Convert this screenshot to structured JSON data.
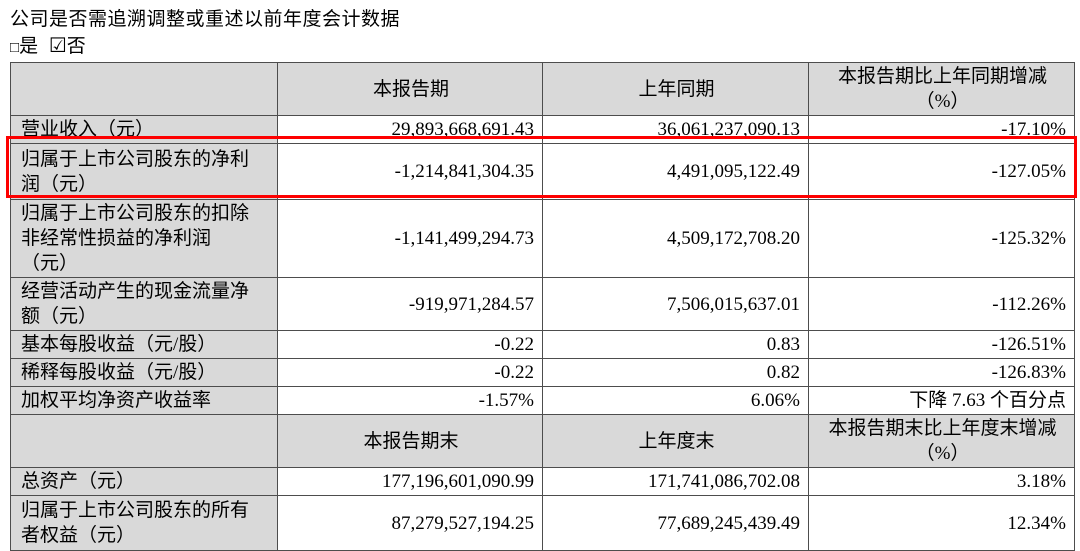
{
  "colors": {
    "header_bg": "#d9d9d9",
    "table_border": "#4d4d4d",
    "highlight_border": "#fe0000",
    "text": "#000000"
  },
  "intro": {
    "question": "公司是否需追溯调整或重述以前年度会计数据",
    "options": [
      {
        "glyph": "□",
        "label": "是",
        "checked": false
      },
      {
        "glyph": "☑",
        "label": "否",
        "checked": true
      }
    ]
  },
  "table": {
    "section1": {
      "headers": {
        "blank": "",
        "period": "本报告期",
        "prior": "上年同期",
        "change": "本报告期比上年同期增减\n（%）"
      },
      "rows": [
        {
          "label": "营业收入（元）",
          "current": "29,893,668,691.43",
          "prior": "36,061,237,090.13",
          "change": "-17.10%",
          "highlighted": false
        },
        {
          "label": "归属于上市公司股东的净利\n润（元）",
          "current": "-1,214,841,304.35",
          "prior": "4,491,095,122.49",
          "change": "-127.05%",
          "highlighted": true
        },
        {
          "label": "归属于上市公司股东的扣除\n非经常性损益的净利润\n（元）",
          "current": "-1,141,499,294.73",
          "prior": "4,509,172,708.20",
          "change": "-125.32%",
          "highlighted": false
        },
        {
          "label": "经营活动产生的现金流量净\n额（元）",
          "current": "-919,971,284.57",
          "prior": "7,506,015,637.01",
          "change": "-112.26%",
          "highlighted": false
        },
        {
          "label": "基本每股收益（元/股）",
          "current": "-0.22",
          "prior": "0.83",
          "change": "-126.51%",
          "highlighted": false
        },
        {
          "label": "稀释每股收益（元/股）",
          "current": "-0.22",
          "prior": "0.82",
          "change": "-126.83%",
          "highlighted": false
        },
        {
          "label": "加权平均净资产收益率",
          "current": "-1.57%",
          "prior": "6.06%",
          "change": "下降 7.63 个百分点",
          "highlighted": false
        }
      ]
    },
    "section2": {
      "headers": {
        "blank": "",
        "period": "本报告期末",
        "prior": "上年度末",
        "change": "本报告期末比上年度末增减\n（%）"
      },
      "rows": [
        {
          "label": "总资产（元）",
          "current": "177,196,601,090.99",
          "prior": "171,741,086,702.08",
          "change": "3.18%",
          "highlighted": false
        },
        {
          "label": "归属于上市公司股东的所有\n者权益（元）",
          "current": "87,279,527,194.25",
          "prior": "77,689,245,439.49",
          "change": "12.34%",
          "highlighted": false
        }
      ]
    }
  }
}
